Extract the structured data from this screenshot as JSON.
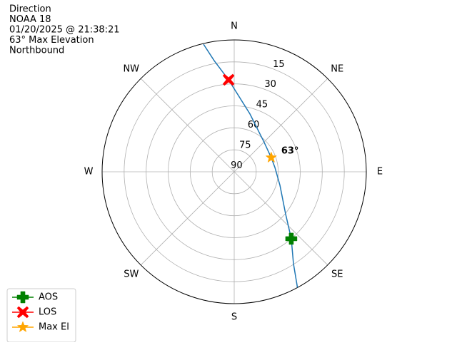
{
  "chart_data": {
    "type": "polar",
    "title": [
      "Direction",
      "NOAA 18",
      "01/20/2025 @ 21:38:21",
      "63° Max Elevation",
      "Northbound"
    ],
    "rlim": [
      90,
      0
    ],
    "rticks": [
      15,
      30,
      45,
      60,
      75,
      90
    ],
    "thetaticks": [
      {
        "value": 0,
        "label": "N"
      },
      {
        "value": 45,
        "label": "NE"
      },
      {
        "value": 90,
        "label": "E"
      },
      {
        "value": 135,
        "label": "SE"
      },
      {
        "value": 180,
        "label": "S"
      },
      {
        "value": 225,
        "label": "SW"
      },
      {
        "value": 270,
        "label": "W"
      },
      {
        "value": 315,
        "label": "NW"
      }
    ],
    "grid": true,
    "legend": "lower left",
    "series": [
      {
        "color": "#1f77b4",
        "marker": "line",
        "x": [
          151.4,
          147.2,
          139.6,
          129.3,
          106.5,
          84,
          69,
          45.7,
          15.2,
          356.5,
          349.8,
          346.5
        ],
        "values": [
          0,
          15.5,
          30,
          44.8,
          57.5,
          62.1,
          63,
          61.4,
          49.1,
          27.1,
          12.9,
          0.5
        ]
      },
      {
        "name": "AOS",
        "color": "green",
        "marker": "plus",
        "x": [
          139.6
        ],
        "values": [
          30
        ]
      },
      {
        "name": "LOS",
        "color": "red",
        "marker": "x",
        "x": [
          356.5
        ],
        "values": [
          27.1
        ]
      },
      {
        "name": "Max El",
        "color": "orange",
        "marker": "star",
        "x": [
          69
        ],
        "values": [
          63
        ]
      }
    ],
    "annotation": "63°"
  }
}
